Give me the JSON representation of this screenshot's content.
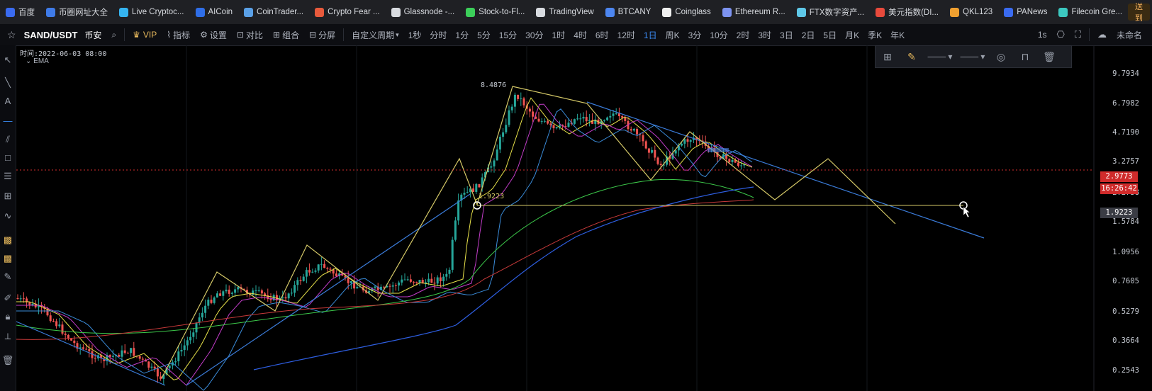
{
  "bookmarks": [
    {
      "label": "百度",
      "icon": "paw-icon",
      "color": "#3a6bf0"
    },
    {
      "label": "币圈网址大全",
      "icon": "shield-icon",
      "color": "#3f7be8"
    },
    {
      "label": "Live Cryptoc...",
      "icon": "globe-icon",
      "color": "#35b4f0"
    },
    {
      "label": "AICoin",
      "icon": "aicoin-icon",
      "color": "#2f6ee8"
    },
    {
      "label": "CoinTrader...",
      "icon": "triangle-icon",
      "color": "#5aa0e6"
    },
    {
      "label": "Crypto Fear ...",
      "icon": "a-icon",
      "color": "#e85a3c"
    },
    {
      "label": "Glassnode -...",
      "icon": "g-icon",
      "color": "#d8dbe0"
    },
    {
      "label": "Stock-to-Fl...",
      "icon": "b-icon",
      "color": "#3ccf5a"
    },
    {
      "label": "TradingView",
      "icon": "tv-icon",
      "color": "#d8dbe0"
    },
    {
      "label": "BTCANY",
      "icon": "btc-icon",
      "color": "#4d86f0"
    },
    {
      "label": "Coinglass",
      "icon": "drop-icon",
      "color": "#f0f0f0"
    },
    {
      "label": "Ethereum R...",
      "icon": "eth-icon",
      "color": "#7d93f0"
    },
    {
      "label": "FTX数字资产...",
      "icon": "ftx-icon",
      "color": "#5fc8e8"
    },
    {
      "label": "美元指数(DI...",
      "icon": "weibo-icon",
      "color": "#e84a3c"
    },
    {
      "label": "QKL123",
      "icon": "q-icon",
      "color": "#f0a030"
    },
    {
      "label": "PANews",
      "icon": "pa-icon",
      "color": "#3a6bf0"
    },
    {
      "label": "Filecoin Gre...",
      "icon": "filecoin-icon",
      "color": "#3cc8c0"
    }
  ],
  "bookmarks_end": "发送到手",
  "toolbar": {
    "symbol": "SAND/USDT",
    "exchange": "币安",
    "vip": "VIP",
    "indicators": "指标",
    "settings": "设置",
    "compare": "对比",
    "combine": "组合",
    "split": "分屏",
    "custom_period": "自定义周期",
    "periods": [
      "1秒",
      "分时",
      "1分",
      "5分",
      "15分",
      "30分",
      "1时",
      "4时",
      "6时",
      "12时",
      "1日",
      "周K",
      "3分",
      "10分",
      "2时",
      "3时",
      "3日",
      "2日",
      "5日",
      "月K",
      "季K",
      "年K"
    ],
    "active_period": "1日",
    "interval_right": "1s",
    "unnamed": "未命名"
  },
  "chart_info": {
    "time_label": "时间:2022-06-03 08:00",
    "indicator": "EMA"
  },
  "chart_data": {
    "type": "line",
    "price_axis_ticks": [
      "9.7934",
      "6.7982",
      "4.7190",
      "3.2757",
      "2.2738",
      "1.5784",
      "1.0956",
      "0.7605",
      "0.5279",
      "0.3664",
      "0.2543"
    ],
    "current_price": "2.9773",
    "countdown": "16:26:42",
    "marker_price": "1.9223",
    "high_label": "8.4876",
    "low_label": "1.9223",
    "log_scale": true
  },
  "colors": {
    "up": "#26a69a",
    "down": "#ef5350",
    "accent": "#3b8cf5",
    "current_price_bg": "#d02b2b"
  }
}
